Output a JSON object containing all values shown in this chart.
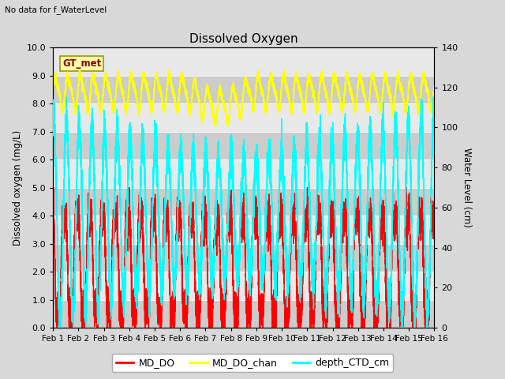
{
  "title": "Dissolved Oxygen",
  "top_left_text": "No data for f_WaterLevel",
  "box_label": "GT_met",
  "ylabel_left": "Dissolved oxygen (mg/L)",
  "ylabel_right": "Water Level (cm)",
  "ylim_left": [
    0.0,
    10.0
  ],
  "ylim_right": [
    0,
    140
  ],
  "yticks_left": [
    0.0,
    1.0,
    2.0,
    3.0,
    4.0,
    5.0,
    6.0,
    7.0,
    8.0,
    9.0,
    10.0
  ],
  "yticks_right": [
    0,
    20,
    40,
    60,
    80,
    100,
    120,
    140
  ],
  "xtick_labels": [
    "Feb 1",
    "Feb 2",
    "Feb 3",
    "Feb 4",
    "Feb 5",
    "Feb 6",
    "Feb 7",
    "Feb 8",
    "Feb 9",
    "Feb 10",
    "Feb 11",
    "Feb 12",
    "Feb 13",
    "Feb 14",
    "Feb 15",
    "Feb 16"
  ],
  "line_colors": {
    "MD_DO": "#ff0000",
    "MD_DO_chan": "#ffff00",
    "depth_CTD_cm": "#00ffff"
  },
  "line_widths": {
    "MD_DO": 1.0,
    "MD_DO_chan": 1.0,
    "depth_CTD_cm": 1.0
  },
  "bg_color": "#d8d8d8",
  "plot_bg_color": "#e8e8e8",
  "stripe_color_dark": "#cccccc",
  "stripe_color_light": "#e8e8e8",
  "n_points": 7200,
  "seed": 12
}
